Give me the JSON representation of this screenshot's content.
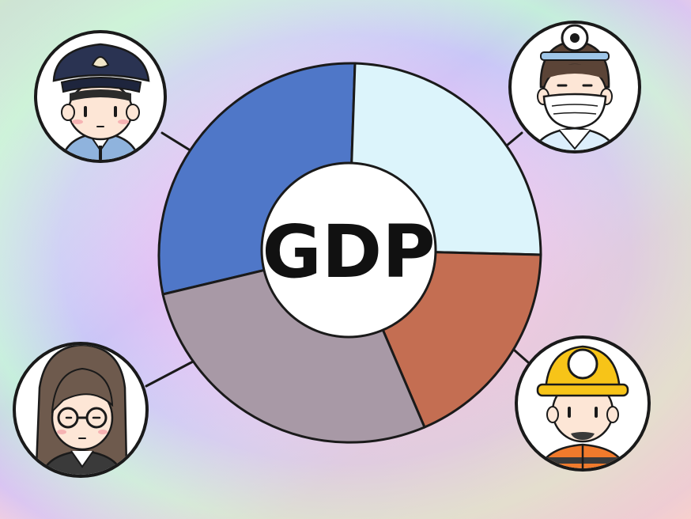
{
  "center": {
    "label": "GDP"
  },
  "palette": {
    "bg_green": "#c8f5c4",
    "bg_pink": "#f9c9e3",
    "bg_purple": "#d6bdf5",
    "bg_peach": "#fbd3c4",
    "seg_blue": "#4f77c8",
    "seg_lightblue": "#dcf4fb",
    "seg_brown": "#c46e52",
    "seg_gray": "#a899a6"
  },
  "segments": [
    {
      "name": "blue-segment",
      "color_key": "seg_blue"
    },
    {
      "name": "lightblue-segment",
      "color_key": "seg_lightblue"
    },
    {
      "name": "brown-segment",
      "color_key": "seg_brown"
    },
    {
      "name": "gray-segment",
      "color_key": "seg_gray"
    }
  ],
  "figures": [
    {
      "icon": "police-officer-icon"
    },
    {
      "icon": "doctor-icon"
    },
    {
      "icon": "office-worker-icon"
    },
    {
      "icon": "miner-icon"
    }
  ]
}
